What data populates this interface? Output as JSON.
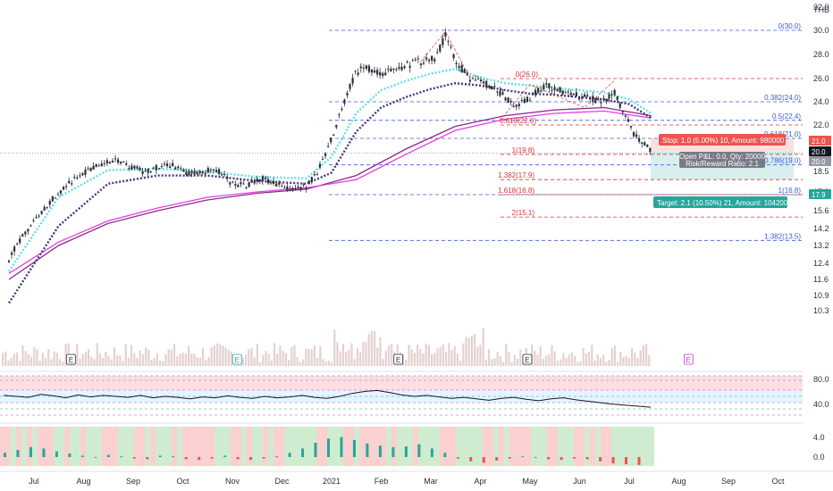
{
  "currency": "THB",
  "colors": {
    "up": "#2a2e39",
    "grid_dash": "#3b5bdb",
    "fib_red": "#e03131",
    "cyan": "#5fe0e8",
    "navy": "#3d3580",
    "ma_purple": "#8a2a8a",
    "ma_magenta": "#e040e0",
    "stop": "#ef5350",
    "target": "#26a69a",
    "stop_zone": "rgba(239,83,80,0.18)",
    "target_zone": "rgba(38,166,154,0.18)",
    "volume": "rgba(200,150,150,0.45)"
  },
  "chart_data": {
    "type": "line",
    "price_axis": {
      "ticks": [
        "32.0",
        "30.0",
        "28.0",
        "26.0",
        "24.0",
        "22.0",
        "20.0",
        "18.5",
        "17.0",
        "15.6",
        "14.2",
        "13.2",
        "12.4",
        "11.6",
        "10.9",
        "10.3"
      ],
      "ylim": [
        10.3,
        32.0
      ]
    },
    "time_axis": {
      "ticks": [
        "Jul",
        "Aug",
        "Sep",
        "Oct",
        "Nov",
        "Dec",
        "2021",
        "Feb",
        "Mar",
        "Apr",
        "May",
        "Jun",
        "Jul",
        "Aug",
        "Sep",
        "Oct"
      ]
    },
    "price_series": [
      {
        "m": 0,
        "v": 12.6
      },
      {
        "m": 0.3,
        "v": 13.8
      },
      {
        "m": 0.6,
        "v": 15.2
      },
      {
        "m": 0.9,
        "v": 16.6
      },
      {
        "m": 1.2,
        "v": 17.6
      },
      {
        "m": 1.5,
        "v": 18.4
      },
      {
        "m": 1.8,
        "v": 18.9
      },
      {
        "m": 2.1,
        "v": 19.4
      },
      {
        "m": 2.4,
        "v": 18.9
      },
      {
        "m": 2.7,
        "v": 18.5
      },
      {
        "m": 3.0,
        "v": 18.8
      },
      {
        "m": 3.3,
        "v": 19.0
      },
      {
        "m": 3.6,
        "v": 18.3
      },
      {
        "m": 3.9,
        "v": 18.5
      },
      {
        "m": 4.2,
        "v": 18.6
      },
      {
        "m": 4.5,
        "v": 17.6
      },
      {
        "m": 4.8,
        "v": 17.5
      },
      {
        "m": 5.1,
        "v": 18.0
      },
      {
        "m": 5.4,
        "v": 17.5
      },
      {
        "m": 5.7,
        "v": 17.2
      },
      {
        "m": 6.0,
        "v": 17.4
      },
      {
        "m": 6.2,
        "v": 18.3
      },
      {
        "m": 6.4,
        "v": 20.0
      },
      {
        "m": 6.6,
        "v": 22.0
      },
      {
        "m": 6.8,
        "v": 24.5
      },
      {
        "m": 7.0,
        "v": 26.5
      },
      {
        "m": 7.2,
        "v": 27.0
      },
      {
        "m": 7.5,
        "v": 26.3
      },
      {
        "m": 7.8,
        "v": 26.8
      },
      {
        "m": 8.1,
        "v": 27.2
      },
      {
        "m": 8.4,
        "v": 27.5
      },
      {
        "m": 8.6,
        "v": 27.8
      },
      {
        "m": 8.8,
        "v": 29.6
      },
      {
        "m": 9.0,
        "v": 27.5
      },
      {
        "m": 9.3,
        "v": 26.0
      },
      {
        "m": 9.6,
        "v": 25.6
      },
      {
        "m": 9.9,
        "v": 24.8
      },
      {
        "m": 10.2,
        "v": 23.6
      },
      {
        "m": 10.5,
        "v": 24.4
      },
      {
        "m": 10.8,
        "v": 25.4
      },
      {
        "m": 11.1,
        "v": 25.0
      },
      {
        "m": 11.4,
        "v": 24.6
      },
      {
        "m": 11.7,
        "v": 24.3
      },
      {
        "m": 12.0,
        "v": 24.0
      },
      {
        "m": 12.2,
        "v": 24.8
      },
      {
        "m": 12.4,
        "v": 23.0
      },
      {
        "m": 12.6,
        "v": 21.2
      },
      {
        "m": 12.8,
        "v": 20.6
      },
      {
        "m": 12.95,
        "v": 20.0
      }
    ],
    "cyan_band": [
      {
        "m": 0,
        "v": 12.0
      },
      {
        "m": 1,
        "v": 16.6
      },
      {
        "m": 2,
        "v": 18.6
      },
      {
        "m": 3,
        "v": 18.7
      },
      {
        "m": 4,
        "v": 18.5
      },
      {
        "m": 5,
        "v": 18.1
      },
      {
        "m": 6,
        "v": 18.0
      },
      {
        "m": 6.5,
        "v": 19.6
      },
      {
        "m": 7,
        "v": 23.0
      },
      {
        "m": 7.5,
        "v": 25.0
      },
      {
        "m": 8,
        "v": 25.8
      },
      {
        "m": 8.5,
        "v": 26.4
      },
      {
        "m": 9,
        "v": 26.8
      },
      {
        "m": 9.5,
        "v": 26.1
      },
      {
        "m": 10,
        "v": 25.6
      },
      {
        "m": 10.5,
        "v": 25.4
      },
      {
        "m": 11,
        "v": 25.2
      },
      {
        "m": 11.5,
        "v": 25.0
      },
      {
        "m": 12,
        "v": 24.8
      },
      {
        "m": 12.5,
        "v": 24.2
      },
      {
        "m": 12.95,
        "v": 23.0
      }
    ],
    "navy_band": [
      {
        "m": 0,
        "v": 10.6
      },
      {
        "m": 1,
        "v": 14.4
      },
      {
        "m": 2,
        "v": 17.6
      },
      {
        "m": 3,
        "v": 18.2
      },
      {
        "m": 4,
        "v": 18.2
      },
      {
        "m": 5,
        "v": 17.8
      },
      {
        "m": 6,
        "v": 17.6
      },
      {
        "m": 6.5,
        "v": 18.4
      },
      {
        "m": 7,
        "v": 21.5
      },
      {
        "m": 7.5,
        "v": 23.5
      },
      {
        "m": 8,
        "v": 24.4
      },
      {
        "m": 8.5,
        "v": 25.1
      },
      {
        "m": 9,
        "v": 25.6
      },
      {
        "m": 9.5,
        "v": 25.4
      },
      {
        "m": 10,
        "v": 25.0
      },
      {
        "m": 10.5,
        "v": 24.7
      },
      {
        "m": 11,
        "v": 24.6
      },
      {
        "m": 11.5,
        "v": 24.4
      },
      {
        "m": 12,
        "v": 24.2
      },
      {
        "m": 12.5,
        "v": 23.8
      },
      {
        "m": 12.95,
        "v": 22.6
      }
    ],
    "ma_purple": [
      {
        "m": 0,
        "v": 11.6
      },
      {
        "m": 1,
        "v": 13.2
      },
      {
        "m": 2,
        "v": 14.6
      },
      {
        "m": 3,
        "v": 15.6
      },
      {
        "m": 4,
        "v": 16.4
      },
      {
        "m": 5,
        "v": 16.9
      },
      {
        "m": 6,
        "v": 17.2
      },
      {
        "m": 7,
        "v": 18.2
      },
      {
        "m": 8,
        "v": 20.2
      },
      {
        "m": 9,
        "v": 21.9
      },
      {
        "m": 10,
        "v": 22.8
      },
      {
        "m": 11,
        "v": 23.3
      },
      {
        "m": 12,
        "v": 23.5
      },
      {
        "m": 12.95,
        "v": 22.8
      }
    ],
    "ma_magenta": [
      {
        "m": 0,
        "v": 11.9
      },
      {
        "m": 1,
        "v": 13.4
      },
      {
        "m": 2,
        "v": 14.8
      },
      {
        "m": 3,
        "v": 15.8
      },
      {
        "m": 4,
        "v": 16.6
      },
      {
        "m": 5,
        "v": 17.0
      },
      {
        "m": 6,
        "v": 17.3
      },
      {
        "m": 7,
        "v": 17.9
      },
      {
        "m": 8,
        "v": 19.8
      },
      {
        "m": 9,
        "v": 21.6
      },
      {
        "m": 10,
        "v": 22.5
      },
      {
        "m": 11,
        "v": 23.0
      },
      {
        "m": 12,
        "v": 23.2
      },
      {
        "m": 12.95,
        "v": 22.6
      }
    ],
    "fib_levels_red": [
      {
        "label": "0(26.0)",
        "price": 26.0
      },
      {
        "label": "0.618(22.0)",
        "price": 22.0
      },
      {
        "label": "1(19.8)",
        "price": 19.8
      },
      {
        "label": "1.382(17.9)",
        "price": 17.9
      },
      {
        "label": "1.618(16.8)",
        "price": 16.8
      },
      {
        "label": "2(15.1)",
        "price": 15.1
      }
    ],
    "fib_levels_blue": [
      {
        "label": "0(30.0)",
        "price": 30.0
      },
      {
        "label": "0.382(24.0)",
        "price": 24.0
      },
      {
        "label": "0.5(22.4)",
        "price": 22.4
      },
      {
        "label": "0.618(21.0)",
        "price": 21.0
      },
      {
        "label": "0.786(19.0)",
        "price": 19.0
      },
      {
        "label": "1(16.8)",
        "price": 16.8
      },
      {
        "label": "1.382(13.5)",
        "price": 13.5
      }
    ],
    "position": {
      "stop_label": "Stop: 1.0 (5.00%) 10, Amount: 980000",
      "target_label": "Target: 2.1 (10.50%) 21, Amount: 1042000",
      "pnl_label": "Open P&L: 0.0, Qty: 20000",
      "rr_label": "Risk/Reward Ratio: 2.1",
      "entry": 20.0,
      "stop": 21.0,
      "target": 17.9
    },
    "price_tags": [
      {
        "text": "21.0",
        "price": 21.0,
        "color": "#ef5350"
      },
      {
        "text": "20.0",
        "price": 20.0,
        "color": "#131722"
      },
      {
        "text": "20.0",
        "price": 19.9,
        "color": "#9598a1"
      },
      {
        "text": "17.9",
        "price": 17.9,
        "color": "#26a69a"
      }
    ],
    "earnings_markers": [
      {
        "m": 1.25,
        "label": "E",
        "color": "#2a2e39"
      },
      {
        "m": 4.6,
        "label": "E",
        "color": "#26a69a"
      },
      {
        "m": 7.85,
        "label": "E",
        "color": "#2a2e39"
      },
      {
        "m": 10.45,
        "label": "E",
        "color": "#2a2e39"
      },
      {
        "m": 13.7,
        "label": "E",
        "color": "#c13cd6"
      }
    ],
    "rsi": {
      "ticks": [
        "80.0",
        "40.0"
      ],
      "series": [
        62,
        60,
        58,
        64,
        61,
        57,
        63,
        59,
        62,
        60,
        58,
        62,
        57,
        60,
        58,
        55,
        59,
        57,
        61,
        58,
        56,
        60,
        57,
        59,
        62,
        58,
        56,
        60,
        66,
        70,
        72,
        68,
        63,
        60,
        62,
        59,
        56,
        58,
        55,
        52,
        56,
        58,
        54,
        51,
        55,
        57,
        53,
        50,
        47,
        44,
        42,
        40,
        38
      ]
    },
    "macd": {
      "ticks": [
        "4.0",
        "0.0"
      ],
      "histogram": [
        0.6,
        1.0,
        1.4,
        1.2,
        0.8,
        0.5,
        0.2,
        -0.1,
        0.3,
        0.1,
        -0.2,
        -0.3,
        0.2,
        0.1,
        -0.3,
        -0.4,
        -0.2,
        0.2,
        -0.3,
        -0.4,
        -0.2,
        0.1,
        0.6,
        1.2,
        2.0,
        2.6,
        2.8,
        2.4,
        1.9,
        1.6,
        1.4,
        1.5,
        1.8,
        1.2,
        0.6,
        -0.2,
        -0.6,
        -0.8,
        -0.5,
        -0.2,
        0.1,
        -0.1,
        -0.3,
        -0.4,
        -0.2,
        -0.3,
        -0.6,
        -0.9,
        -1.0,
        -1.1
      ]
    }
  }
}
